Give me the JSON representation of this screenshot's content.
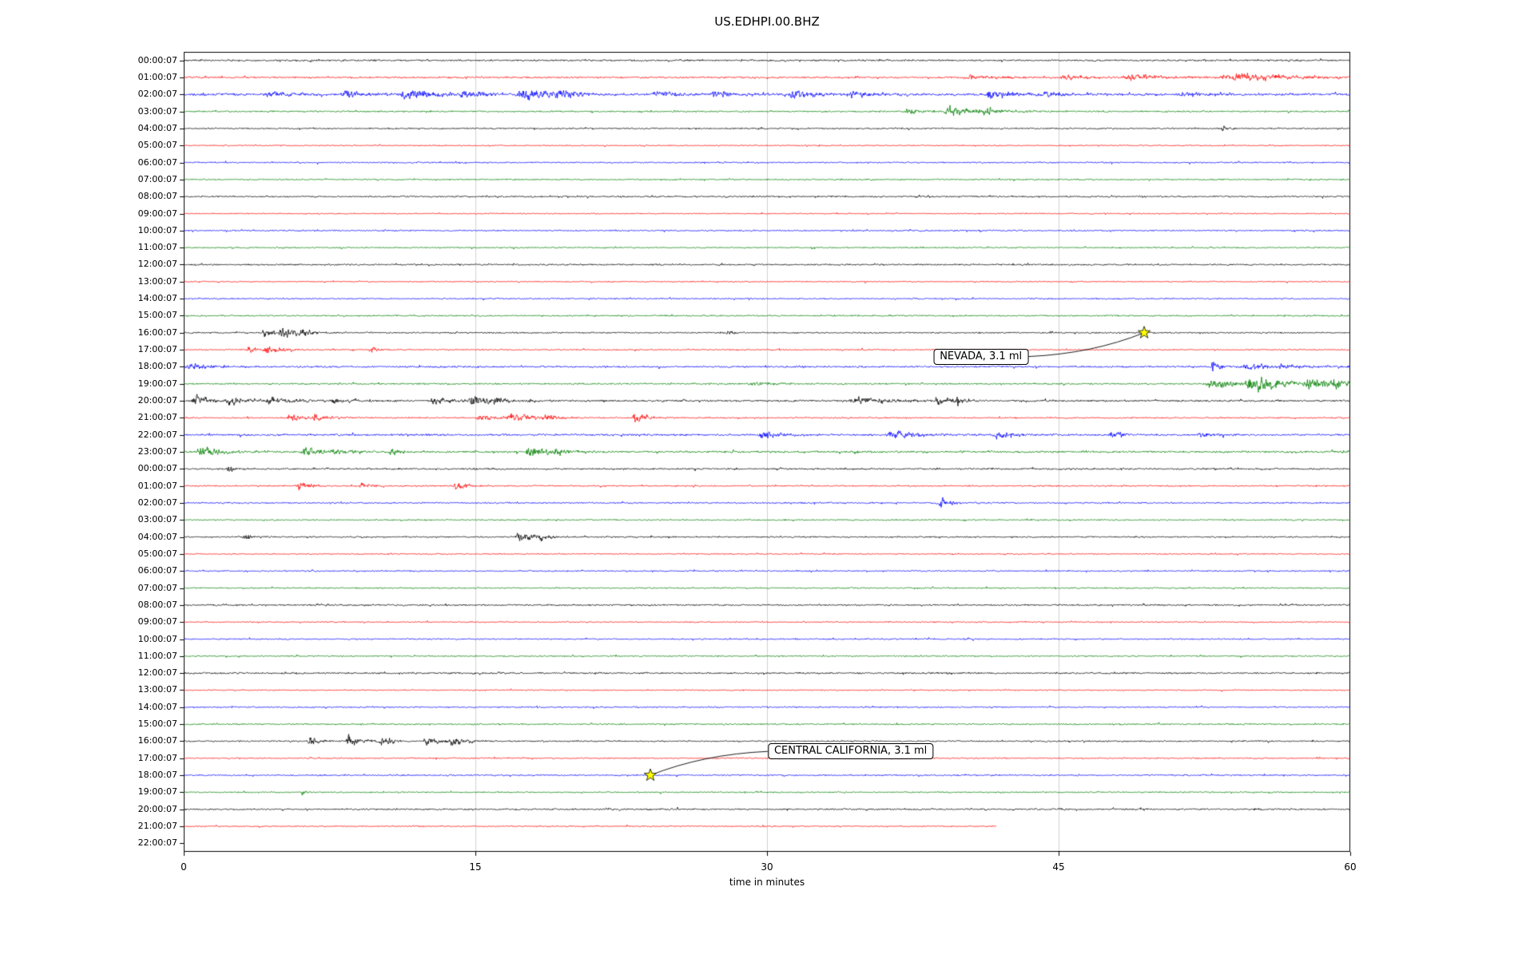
{
  "title": "US.EDHPI.00.BHZ",
  "chart_data": {
    "type": "line",
    "subtype": "helicorder-seismogram",
    "xlabel": "time in minutes",
    "x_range": [
      0,
      60
    ],
    "x_ticks": [
      "0",
      "15",
      "30",
      "45",
      "60"
    ],
    "x_tick_values": [
      0,
      15,
      30,
      45,
      60
    ],
    "grid_x": [
      15,
      30,
      45
    ],
    "grid_on": true,
    "colors": {
      "black": "#000000",
      "red": "#ff0000",
      "blue": "#0000ff",
      "green": "#008000",
      "grid": "#d0d0d0",
      "star_fill": "#ffff00",
      "star_edge": "#000000",
      "annotation_bg": "#ffffff",
      "annotation_border": "#000000"
    },
    "rows": [
      {
        "label": "00:00:07",
        "color": "black",
        "amp": 1.6,
        "end": 60,
        "events": []
      },
      {
        "label": "01:00:07",
        "color": "red",
        "amp": 1.6,
        "end": 60,
        "events": [
          [
            40,
            3,
            2.5
          ],
          [
            45,
            2,
            3
          ],
          [
            48,
            4,
            3.5
          ],
          [
            53,
            7,
            4
          ]
        ]
      },
      {
        "label": "02:00:07",
        "color": "blue",
        "amp": 2.2,
        "end": 60,
        "events": [
          [
            4,
            3,
            3
          ],
          [
            8,
            2,
            4
          ],
          [
            11,
            3,
            5
          ],
          [
            14,
            2,
            4
          ],
          [
            17,
            3,
            6
          ],
          [
            19,
            2,
            5
          ],
          [
            24,
            2,
            4
          ],
          [
            27,
            2,
            4
          ],
          [
            31,
            2,
            5
          ],
          [
            34,
            2,
            4
          ],
          [
            41,
            3,
            4
          ],
          [
            44,
            2,
            3
          ],
          [
            51,
            2,
            3
          ]
        ]
      },
      {
        "label": "03:00:07",
        "color": "green",
        "amp": 1.5,
        "end": 60,
        "events": [
          [
            37,
            2,
            3
          ],
          [
            39,
            3,
            5
          ],
          [
            41,
            1.5,
            4
          ]
        ]
      },
      {
        "label": "04:00:07",
        "color": "black",
        "amp": 1.4,
        "end": 60,
        "events": [
          [
            53.3,
            0.6,
            3
          ]
        ]
      },
      {
        "label": "05:00:07",
        "color": "red",
        "amp": 1.1,
        "end": 60,
        "events": []
      },
      {
        "label": "06:00:07",
        "color": "blue",
        "amp": 1.3,
        "end": 60,
        "events": []
      },
      {
        "label": "07:00:07",
        "color": "green",
        "amp": 1.3,
        "end": 60,
        "events": []
      },
      {
        "label": "08:00:07",
        "color": "black",
        "amp": 1.5,
        "end": 60,
        "events": []
      },
      {
        "label": "09:00:07",
        "color": "red",
        "amp": 1.1,
        "end": 60,
        "events": []
      },
      {
        "label": "10:00:07",
        "color": "blue",
        "amp": 1.3,
        "end": 60,
        "events": []
      },
      {
        "label": "11:00:07",
        "color": "green",
        "amp": 1.3,
        "end": 60,
        "events": []
      },
      {
        "label": "12:00:07",
        "color": "black",
        "amp": 1.5,
        "end": 60,
        "events": []
      },
      {
        "label": "13:00:07",
        "color": "red",
        "amp": 1.1,
        "end": 60,
        "events": []
      },
      {
        "label": "14:00:07",
        "color": "blue",
        "amp": 1.3,
        "end": 60,
        "events": []
      },
      {
        "label": "15:00:07",
        "color": "green",
        "amp": 1.4,
        "end": 60,
        "events": []
      },
      {
        "label": "16:00:07",
        "color": "black",
        "amp": 1.4,
        "end": 60,
        "events": [
          [
            4,
            1,
            5
          ],
          [
            4.8,
            1.5,
            6
          ],
          [
            6,
            1,
            4
          ],
          [
            27.8,
            0.6,
            3.5
          ]
        ]
      },
      {
        "label": "17:00:07",
        "color": "red",
        "amp": 1.2,
        "end": 60,
        "events": [
          [
            3.2,
            1,
            4
          ],
          [
            4,
            1.5,
            5
          ],
          [
            9.5,
            0.8,
            3
          ]
        ]
      },
      {
        "label": "18:00:07",
        "color": "blue",
        "amp": 1.7,
        "end": 60,
        "events": [
          [
            0,
            2,
            4
          ],
          [
            52.8,
            0.7,
            6
          ],
          [
            54,
            6,
            3
          ]
        ]
      },
      {
        "label": "19:00:07",
        "color": "green",
        "amp": 1.5,
        "end": 60,
        "events": [
          [
            29,
            1.5,
            3
          ],
          [
            52.5,
            2,
            6
          ],
          [
            54.5,
            3,
            9
          ],
          [
            57.5,
            2.5,
            7
          ],
          [
            59,
            1,
            6
          ]
        ]
      },
      {
        "label": "20:00:07",
        "color": "black",
        "amp": 1.8,
        "end": 60,
        "events": [
          [
            0.3,
            1.5,
            6
          ],
          [
            2,
            2,
            4
          ],
          [
            4,
            3,
            3.5
          ],
          [
            7.5,
            1,
            4
          ],
          [
            12.5,
            2,
            4
          ],
          [
            14.5,
            2.5,
            5
          ],
          [
            15.8,
            1,
            4
          ],
          [
            34,
            4,
            3.5
          ],
          [
            38.5,
            1.5,
            4
          ],
          [
            39.7,
            0.5,
            7
          ]
        ]
      },
      {
        "label": "21:00:07",
        "color": "red",
        "amp": 1.3,
        "end": 60,
        "events": [
          [
            5.3,
            1,
            6
          ],
          [
            6.5,
            1.5,
            4
          ],
          [
            15,
            1.5,
            4
          ],
          [
            16.5,
            2.5,
            5
          ],
          [
            18.5,
            1,
            4
          ],
          [
            23,
            1.2,
            5
          ]
        ]
      },
      {
        "label": "22:00:07",
        "color": "blue",
        "amp": 1.8,
        "end": 60,
        "events": [
          [
            29.5,
            2,
            4
          ],
          [
            36,
            2.5,
            5
          ],
          [
            41.5,
            2,
            4
          ],
          [
            47.5,
            1.5,
            3.5
          ],
          [
            52,
            1.5,
            3
          ]
        ]
      },
      {
        "label": "23:00:07",
        "color": "green",
        "amp": 1.9,
        "end": 60,
        "events": [
          [
            0.5,
            2.5,
            5
          ],
          [
            6,
            2,
            5
          ],
          [
            7.5,
            1.5,
            4
          ],
          [
            10.5,
            1,
            4
          ],
          [
            17.5,
            2,
            6
          ],
          [
            19,
            1,
            4
          ]
        ]
      },
      {
        "label": "00:00:07",
        "color": "black",
        "amp": 1.6,
        "end": 60,
        "events": [
          [
            2.2,
            0.7,
            4
          ]
        ]
      },
      {
        "label": "01:00:07",
        "color": "red",
        "amp": 1.3,
        "end": 60,
        "events": [
          [
            5.8,
            1,
            6
          ],
          [
            9,
            0.8,
            4
          ],
          [
            13.8,
            1,
            5
          ]
        ]
      },
      {
        "label": "02:00:07",
        "color": "blue",
        "amp": 1.4,
        "end": 60,
        "events": [
          [
            38.8,
            0.8,
            7
          ]
        ]
      },
      {
        "label": "03:00:07",
        "color": "green",
        "amp": 1.3,
        "end": 60,
        "events": []
      },
      {
        "label": "04:00:07",
        "color": "black",
        "amp": 1.4,
        "end": 60,
        "events": [
          [
            3,
            0.8,
            4
          ],
          [
            17,
            1.5,
            5
          ],
          [
            18.2,
            0.8,
            4
          ]
        ]
      },
      {
        "label": "05:00:07",
        "color": "red",
        "amp": 1.1,
        "end": 60,
        "events": []
      },
      {
        "label": "06:00:07",
        "color": "blue",
        "amp": 1.3,
        "end": 60,
        "events": []
      },
      {
        "label": "07:00:07",
        "color": "green",
        "amp": 1.3,
        "end": 60,
        "events": []
      },
      {
        "label": "08:00:07",
        "color": "black",
        "amp": 1.5,
        "end": 60,
        "events": []
      },
      {
        "label": "09:00:07",
        "color": "red",
        "amp": 1.1,
        "end": 60,
        "events": []
      },
      {
        "label": "10:00:07",
        "color": "blue",
        "amp": 1.3,
        "end": 60,
        "events": []
      },
      {
        "label": "11:00:07",
        "color": "green",
        "amp": 1.3,
        "end": 60,
        "events": []
      },
      {
        "label": "12:00:07",
        "color": "black",
        "amp": 1.6,
        "end": 60,
        "events": []
      },
      {
        "label": "13:00:07",
        "color": "red",
        "amp": 1.1,
        "end": 60,
        "events": []
      },
      {
        "label": "14:00:07",
        "color": "blue",
        "amp": 1.3,
        "end": 60,
        "events": []
      },
      {
        "label": "15:00:07",
        "color": "green",
        "amp": 1.4,
        "end": 60,
        "events": []
      },
      {
        "label": "16:00:07",
        "color": "black",
        "amp": 1.4,
        "end": 60,
        "events": [
          [
            6.3,
            1,
            5
          ],
          [
            8.3,
            1.2,
            6
          ],
          [
            10,
            1,
            4
          ],
          [
            12.3,
            1,
            5
          ],
          [
            13.6,
            1.2,
            6
          ]
        ]
      },
      {
        "label": "17:00:07",
        "color": "red",
        "amp": 1.2,
        "end": 60,
        "events": []
      },
      {
        "label": "18:00:07",
        "color": "blue",
        "amp": 1.4,
        "end": 60,
        "events": []
      },
      {
        "label": "19:00:07",
        "color": "green",
        "amp": 1.3,
        "end": 60,
        "events": [
          [
            6,
            0.5,
            3
          ]
        ]
      },
      {
        "label": "20:00:07",
        "color": "black",
        "amp": 1.5,
        "end": 60,
        "events": [
          [
            55,
            0.5,
            2.5
          ]
        ]
      },
      {
        "label": "21:00:07",
        "color": "red",
        "amp": 1.1,
        "end": 41.8,
        "events": []
      },
      {
        "label": "22:00:07",
        "color": "black",
        "amp": 0,
        "end": 0,
        "events": []
      }
    ],
    "annotations": [
      {
        "text": "NEVADA, 3.1 ml",
        "marker_minutes": 49.4,
        "marker_row": 16,
        "label_minutes": 41.0,
        "label_row": 17.4
      },
      {
        "text": "CENTRAL CALIFORNIA, 3.1 ml",
        "marker_minutes": 24.0,
        "marker_row": 42,
        "label_minutes": 34.3,
        "label_row": 40.6
      }
    ]
  }
}
